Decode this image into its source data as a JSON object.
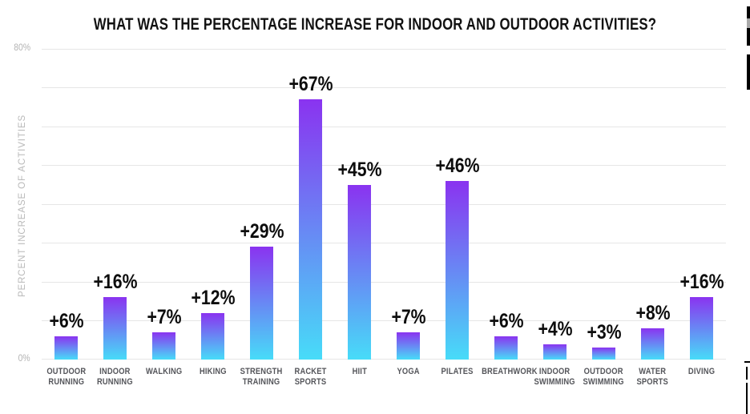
{
  "chart_data": {
    "type": "bar",
    "title": "WHAT WAS THE PERCENTAGE INCREASE FOR INDOOR AND OUTDOOR ACTIVITIES?",
    "ylabel": "PERCENT INCREASE OF ACTIVITIES",
    "xlabel": "",
    "ylim": [
      0,
      80
    ],
    "grid_step": 10,
    "grid": "on",
    "legend": "none",
    "y_ticks_labeled": [
      {
        "value": 80,
        "label": "80%"
      },
      {
        "value": 0,
        "label": "0%"
      }
    ],
    "categories": [
      "OUTDOOR RUNNING",
      "INDOOR RUNNING",
      "WALKING",
      "HIKING",
      "STRENGTH TRAINING",
      "RACKET SPORTS",
      "HIIT",
      "YOGA",
      "PILATES",
      "BREATHWORK",
      "INDOOR SWIMMING",
      "OUTDOOR SWIMMING",
      "WATER SPORTS",
      "DIVING"
    ],
    "category_lines": [
      [
        "OUTDOOR",
        "RUNNING"
      ],
      [
        "INDOOR",
        "RUNNING"
      ],
      [
        "WALKING"
      ],
      [
        "HIKING"
      ],
      [
        "STRENGTH",
        "TRAINING"
      ],
      [
        "RACKET",
        "SPORTS"
      ],
      [
        "HIIT"
      ],
      [
        "YOGA"
      ],
      [
        "PILATES"
      ],
      [
        "BREATHWORK"
      ],
      [
        "INDOOR",
        "SWIMMING"
      ],
      [
        "OUTDOOR",
        "SWIMMING"
      ],
      [
        "WATER",
        "SPORTS"
      ],
      [
        "DIVING"
      ]
    ],
    "values": [
      6,
      16,
      7,
      12,
      29,
      67,
      45,
      7,
      46,
      6,
      4,
      3,
      8,
      16
    ],
    "value_labels": [
      "+6%",
      "+16%",
      "+7%",
      "+12%",
      "+29%",
      "+67%",
      "+45%",
      "+7%",
      "+46%",
      "+6%",
      "+4%",
      "+3%",
      "+8%",
      "+16%"
    ],
    "colors": {
      "bar_top": "#8a33f0",
      "bar_bottom": "#47dcf8",
      "gridline": "#e6e6e6",
      "title_text": "#121212",
      "value_label_text": "#0d0d0d",
      "category_label_text": "#54555a",
      "axis_label_text": "#b3b3b3",
      "background": "#ffffff"
    }
  }
}
